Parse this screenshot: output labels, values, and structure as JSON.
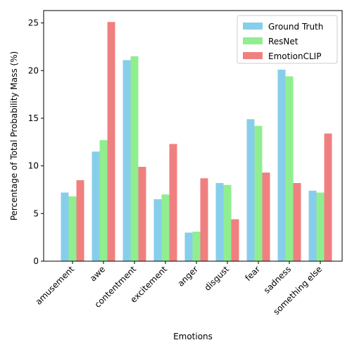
{
  "chart_data": {
    "type": "bar",
    "categories": [
      "amusement",
      "awe",
      "contentment",
      "excitement",
      "anger",
      "disgust",
      "fear",
      "sadness",
      "something else"
    ],
    "series": [
      {
        "name": "Ground Truth",
        "color": "#87ceeb",
        "values": [
          7.2,
          11.5,
          21.1,
          6.5,
          3.0,
          8.2,
          14.9,
          20.1,
          7.4
        ]
      },
      {
        "name": "ResNet",
        "color": "#90ee90",
        "values": [
          6.8,
          12.7,
          21.5,
          7.0,
          3.1,
          8.0,
          14.2,
          19.4,
          7.2
        ]
      },
      {
        "name": "EmotionCLIP",
        "color": "#f08080",
        "values": [
          8.5,
          25.1,
          9.9,
          12.3,
          8.7,
          4.4,
          9.3,
          8.2,
          13.4
        ]
      }
    ],
    "xlabel": "Emotions",
    "ylabel": "Percentage of Total Probability Mass (%)",
    "ylim": [
      0,
      26.3
    ],
    "yticks": [
      0,
      5,
      10,
      15,
      20,
      25
    ],
    "grid": false,
    "legend_position": "top-right"
  }
}
